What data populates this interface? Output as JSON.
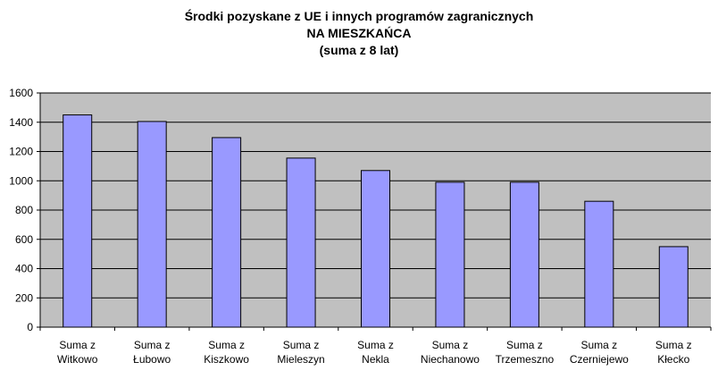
{
  "chart_data": {
    "type": "bar",
    "title": [
      "Środki pozyskane z UE i innych programów zagranicznych",
      "NA MIESZKAŃCA",
      "(suma z 8 lat)"
    ],
    "categories": [
      [
        "Suma z",
        "Witkowo"
      ],
      [
        "Suma z",
        "Łubowo"
      ],
      [
        "Suma z",
        "Kiszkowo"
      ],
      [
        "Suma z",
        "Mieleszyn"
      ],
      [
        "Suma z",
        "Nekla"
      ],
      [
        "Suma z",
        "Niechanowo"
      ],
      [
        "Suma z",
        "Trzemeszno"
      ],
      [
        "Suma z",
        "Czerniejewo"
      ],
      [
        "Suma z",
        "Kłecko"
      ]
    ],
    "values": [
      1450,
      1405,
      1295,
      1155,
      1070,
      990,
      990,
      860,
      550
    ],
    "ylim": [
      0,
      1600
    ],
    "yticks": [
      "0",
      "200",
      "400",
      "600",
      "800",
      "1000",
      "1200",
      "1400",
      "1600"
    ],
    "grid": true,
    "legend": false,
    "colors": {
      "bar_fill": "#9999ff",
      "bar_stroke": "#000000",
      "plot_background": "#c0c0c0",
      "gridline": "#000000"
    }
  }
}
